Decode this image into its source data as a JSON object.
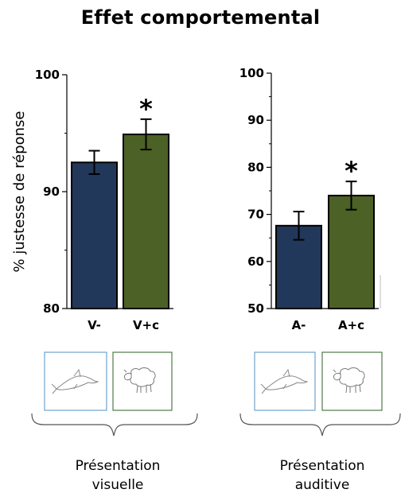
{
  "title": "Effet comportemental",
  "colors": {
    "visual_minus": "#22385a",
    "visual_plus": "#4c6125",
    "frame_blue": "#6fa3cf",
    "frame_green": "#4f7a4a"
  },
  "icons": [
    "dolphin-icon",
    "sheep-icon",
    "dolphin-icon",
    "sheep-icon"
  ],
  "groups": [
    {
      "line1": "Présentation",
      "line2": "visuelle"
    },
    {
      "line1": "Présentation",
      "line2": "auditive"
    }
  ],
  "chart_data": [
    {
      "type": "bar",
      "title": "",
      "ylabel": "% justesse de réponse",
      "xlabel": "",
      "ylim": [
        80,
        100
      ],
      "yticks": [
        "80",
        "90",
        "100"
      ],
      "categories": [
        "V-",
        "V+c"
      ],
      "values": [
        92.5,
        94.9
      ],
      "errors": [
        1.0,
        1.3
      ],
      "annotations": [
        "",
        "*"
      ],
      "grid": false
    },
    {
      "type": "bar",
      "title": "",
      "ylabel": "",
      "xlabel": "",
      "ylim": [
        50,
        100
      ],
      "yticks": [
        "50",
        "60",
        "70",
        "80",
        "90",
        "100"
      ],
      "categories": [
        "A-",
        "A+c"
      ],
      "values": [
        67.6,
        74.0
      ],
      "errors": [
        3.0,
        3.0
      ],
      "annotations": [
        "",
        "*"
      ],
      "grid": false
    }
  ]
}
